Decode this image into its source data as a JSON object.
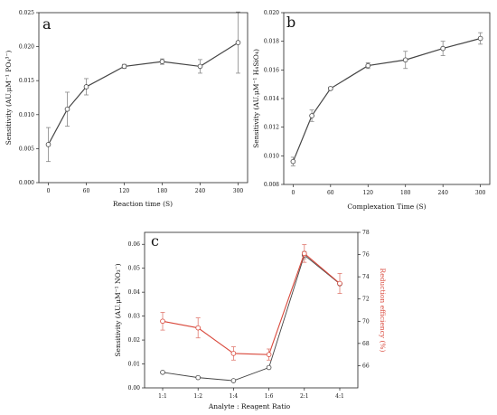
{
  "chart_data": [
    {
      "panel": "a",
      "type": "line",
      "xlabel": "Reaction time (S)",
      "ylabel": "Sensitivity (AU.μM⁻¹ PO₄³⁻)",
      "xlim": [
        -15,
        315
      ],
      "ylim": [
        0,
        0.025
      ],
      "xticks": [
        "0",
        "60",
        "120",
        "180",
        "240",
        "300"
      ],
      "xtick_values": [
        0,
        60,
        120,
        180,
        240,
        300
      ],
      "yticks": [
        "0.000",
        "0.005",
        "0.010",
        "0.015",
        "0.020",
        "0.025"
      ],
      "ytick_values": [
        0,
        0.005,
        0.01,
        0.015,
        0.02,
        0.025
      ],
      "series": [
        {
          "color": "#444444",
          "x": [
            0,
            30,
            60,
            120,
            180,
            240,
            300
          ],
          "y": [
            0.0056,
            0.0108,
            0.0141,
            0.0171,
            0.0178,
            0.0171,
            0.0206
          ],
          "err": [
            0.0025,
            0.0025,
            0.0012,
            0.0003,
            0.0004,
            0.001,
            0.0045
          ]
        }
      ]
    },
    {
      "panel": "b",
      "type": "line",
      "xlabel": "Complexation Time (S)",
      "ylabel": "Sensitivity (AU.μM⁻¹ H₄SiO₄)",
      "xlim": [
        -15,
        315
      ],
      "ylim": [
        0.008,
        0.02
      ],
      "xticks": [
        "0",
        "60",
        "120",
        "180",
        "240",
        "300"
      ],
      "xtick_values": [
        0,
        60,
        120,
        180,
        240,
        300
      ],
      "yticks": [
        "0.008",
        "0.010",
        "0.012",
        "0.014",
        "0.016",
        "0.018",
        "0.020"
      ],
      "ytick_values": [
        0.008,
        0.01,
        0.012,
        0.014,
        0.016,
        0.018,
        0.02
      ],
      "series": [
        {
          "color": "#444444",
          "x": [
            0,
            30,
            60,
            120,
            180,
            240,
            300
          ],
          "y": [
            0.0096,
            0.0128,
            0.0147,
            0.0163,
            0.0167,
            0.0175,
            0.0182
          ],
          "err": [
            0.0003,
            0.0004,
            0.0001,
            0.0002,
            0.0006,
            0.0005,
            0.0004
          ]
        }
      ]
    },
    {
      "panel": "c",
      "type": "line",
      "xlabel": "Analyte : Reagent Ratio",
      "ylabel": "Sensitivity (AU.μM⁻¹ NO₃⁻)",
      "y2label": "Reduction efficiency (%)",
      "categories": [
        "1:1",
        "1:2",
        "1:4",
        "1:6",
        "2:1",
        "4:1"
      ],
      "ylim": [
        0,
        0.065
      ],
      "yticks": [
        "0.00",
        "0.01",
        "0.02",
        "0.03",
        "0.04",
        "0.05",
        "0.06"
      ],
      "ytick_values": [
        0,
        0.01,
        0.02,
        0.03,
        0.04,
        0.05,
        0.06
      ],
      "y2lim": [
        64,
        78
      ],
      "y2ticks": [
        "66",
        "68",
        "70",
        "72",
        "74",
        "76",
        "78"
      ],
      "y2tick_values": [
        66,
        68,
        70,
        72,
        74,
        76,
        78
      ],
      "series": [
        {
          "axis": "left",
          "color": "#444444",
          "values": [
            0.0065,
            0.0043,
            0.003,
            0.0085,
            0.0555,
            0.0435
          ],
          "err": [
            0,
            0,
            0,
            0,
            0.0015,
            0
          ]
        },
        {
          "axis": "right",
          "color": "#d9483b",
          "values": [
            70,
            69.4,
            67.1,
            67,
            76.1,
            73.4
          ],
          "err": [
            0.8,
            0.9,
            0.6,
            0.5,
            0.8,
            0.9
          ]
        }
      ]
    }
  ],
  "panels": {
    "a": "a",
    "b": "b",
    "c": "c"
  }
}
